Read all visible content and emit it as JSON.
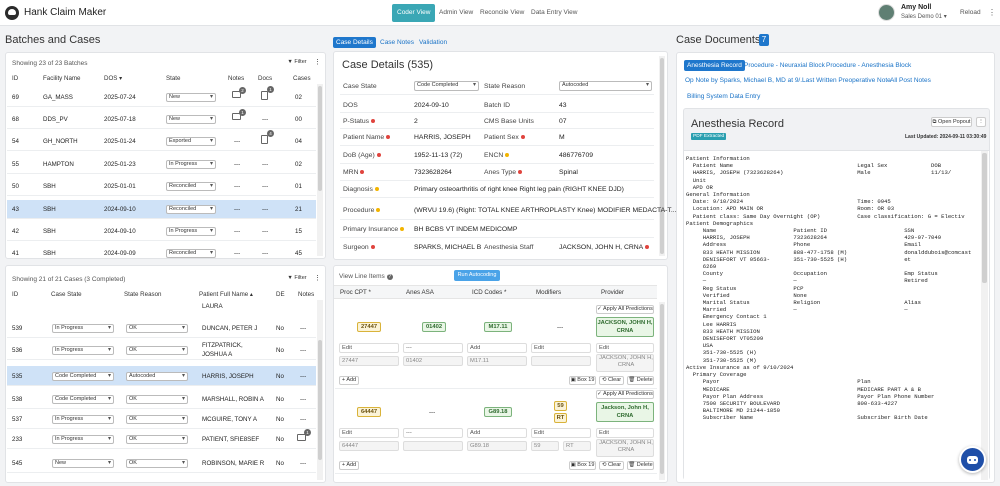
{
  "app": {
    "title": "Hank Claim Maker"
  },
  "nav": [
    {
      "label": "Coder View",
      "active": true
    },
    {
      "label": "Admin View",
      "active": false
    },
    {
      "label": "Reconcile View",
      "active": false
    },
    {
      "label": "Data Entry View",
      "active": false
    }
  ],
  "user": {
    "name": "Amy Noll",
    "role": "Sales Demo 01",
    "reload": "Reload"
  },
  "batches": {
    "title": "Batches and Cases",
    "showing": "Showing 23 of 23 Batches",
    "filter": "Filter",
    "headers": [
      "ID",
      "Facility Name",
      "DOS",
      "State",
      "Notes",
      "Docs",
      "Cases"
    ],
    "rows": [
      {
        "id": "69",
        "facility": "GA_MASS",
        "dos": "2025-07-24",
        "state": "New",
        "notes": "2",
        "docs": "1",
        "cases": "02"
      },
      {
        "id": "68",
        "facility": "DDS_PV",
        "dos": "2025-07-18",
        "state": "New",
        "notes": "1",
        "docs": "---",
        "cases": "00"
      },
      {
        "id": "54",
        "facility": "GH_NORTH",
        "dos": "2025-01-24",
        "state": "Exported",
        "notes": "---",
        "docs": "4",
        "cases": "04"
      },
      {
        "id": "55",
        "facility": "HAMPTON",
        "dos": "2025-01-23",
        "state": "In Progress",
        "notes": "---",
        "docs": "---",
        "cases": "02"
      },
      {
        "id": "50",
        "facility": "SBH",
        "dos": "2025-01-01",
        "state": "Reconciled",
        "notes": "---",
        "docs": "---",
        "cases": "01"
      },
      {
        "id": "43",
        "facility": "SBH",
        "dos": "2024-09-10",
        "state": "Reconciled",
        "notes": "---",
        "docs": "---",
        "cases": "21"
      },
      {
        "id": "42",
        "facility": "SBH",
        "dos": "2024-09-10",
        "state": "In Progress",
        "notes": "---",
        "docs": "---",
        "cases": "15"
      },
      {
        "id": "41",
        "facility": "SBH",
        "dos": "2024-09-09",
        "state": "Reconciled",
        "notes": "---",
        "docs": "---",
        "cases": "45"
      }
    ]
  },
  "cases": {
    "showing": "Showing 21 of 21 Cases (3 Completed)",
    "filter": "Filter",
    "headers": [
      "ID",
      "Case State",
      "State Reason",
      "Patient Full Name",
      "DE",
      "Notes"
    ],
    "top_name": "LAURA",
    "rows": [
      {
        "id": "539",
        "state": "In Progress",
        "reason": "OK",
        "name": "DUNCAN, PETER J",
        "name2": "",
        "de": "No",
        "notes": "---"
      },
      {
        "id": "536",
        "state": "In Progress",
        "reason": "OK",
        "name": "FITZPATRICK,",
        "name2": "JOSHUA A",
        "de": "No",
        "notes": "---"
      },
      {
        "id": "535",
        "state": "Code Completed",
        "reason": "Autocoded",
        "name": "HARRIS, JOSEPH",
        "name2": "",
        "de": "No",
        "notes": "---"
      },
      {
        "id": "538",
        "state": "Code Completed",
        "reason": "OK",
        "name": "MARSHALL, ROBIN A",
        "name2": "",
        "de": "No",
        "notes": "---"
      },
      {
        "id": "537",
        "state": "In Progress",
        "reason": "OK",
        "name": "MCGUIRE, TONY A",
        "name2": "",
        "de": "No",
        "notes": "---"
      },
      {
        "id": "233",
        "state": "In Progress",
        "reason": "OK",
        "name": "PATIENT, SFIE8SEF",
        "name2": "",
        "de": "No",
        "notes": "1"
      },
      {
        "id": "545",
        "state": "New",
        "reason": "OK",
        "name": "ROBINSON, MARIE R",
        "name2": "",
        "de": "No",
        "notes": "---"
      }
    ]
  },
  "case_tabs": [
    "Case Details",
    "Case Notes",
    "Validation"
  ],
  "case_details": {
    "title": "Case Details (535)",
    "fields": {
      "case_state_label": "Case State",
      "case_state": "Code Completed",
      "state_reason_label": "State Reason",
      "state_reason": "Autocoded",
      "dos_label": "DOS",
      "dos": "2024-09-10",
      "batch_label": "Batch ID",
      "batch": "43",
      "pstatus_label": "P-Status",
      "pstatus": "2",
      "cms_label": "CMS Base Units",
      "cms": "07",
      "patient_label": "Patient Name",
      "patient": "HARRIS, JOSEPH",
      "sex_label": "Patient Sex",
      "sex": "M",
      "dob_label": "DoB (Age)",
      "dob": "1952-11-13 (72)",
      "encn_label": "ENCN",
      "encn": "486776709",
      "mrn_label": "MRN",
      "mrn": "7323628264",
      "anes_type_label": "Anes Type",
      "anes_type": "Spinal",
      "diagnosis_label": "Diagnosis",
      "diagnosis": "Primary osteoarthritis of right knee Right leg pain (RIGHT KNEE DJD)",
      "procedure_label": "Procedure",
      "procedure": "(WRVU 19.6) (Right: TOTAL KNEE ARTHROPLASTY Knee) MODIFIER MEDACTA-T...",
      "insurance_label": "Primary Insurance",
      "insurance": "BH BCBS VT INDEM MEDICOMP",
      "surgeon_label": "Surgeon",
      "surgeon": "SPARKS, MICHAEL B",
      "anes_staff_label": "Anesthesia Staff",
      "anes_staff": "JACKSON, JOHN H, CRNA"
    }
  },
  "line_items": {
    "title": "View Line Items",
    "run_button": "Run Autocoding",
    "headers": [
      "Proc CPT",
      "Anes ASA",
      "ICD Codes",
      "Modifiers",
      "Provider"
    ],
    "apply": "Apply All Predictions",
    "edit": "Edit",
    "add": "Add",
    "box": "Box 19",
    "clear": "Clear",
    "delete": "Delete",
    "dash": "---",
    "items": [
      {
        "cpt": "27447",
        "asa": "01402",
        "icd": "M17.11",
        "mods": "---",
        "mods2": "",
        "provider": "JACKSON, JOHN H, CRNA",
        "row_cpt": "27447",
        "row_asa": "01402",
        "row_icd": "M17.11",
        "row_mod": "",
        "row_provider": "JACKSON, JOHN H, CRNA"
      },
      {
        "cpt": "64447",
        "asa": "---",
        "icd": "G89.18",
        "mods": "59",
        "mods2": "RT",
        "provider": "Jackson, John H, CRNA",
        "row_cpt": "64447",
        "row_asa": "",
        "row_icd": "G89.18",
        "row_mod": "59",
        "row_mod2": "RT",
        "row_provider": "JACKSON, JOHN H, CRNA"
      }
    ]
  },
  "documents": {
    "title": "Case Documents",
    "count": "7",
    "tabs": [
      "Anesthesia Record",
      "Procedure - Neuraxial Block",
      "Procedure - Anesthesia Block",
      "Op Note by Sparks, Michael B, MD at 9/...",
      "Last Written Preoperative Note",
      "All Post Notes",
      "Billing System Data Entry"
    ],
    "doc_title": "Anesthesia Record",
    "pdf_badge": "PDF Extracted",
    "open_popout": "Open Popout",
    "last_updated": "Last Updated: 2024-09-11 03:30:49",
    "text": "Patient Information\n  Patient Name                                     Legal Sex             DOB\n  HARRIS, JOSEPH (7323628264)                      Male                  11/13/\n  Unit\n  APD OR\nGeneral Information\n  Date: 9/10/2024                                  Time: 0945\n  Location: APD MAIN OR                            Room: OR 03\n  Patient class: Same Day Overnight (OP)           Case classification: G = Electiv\nPatient Demographics\n     Name                       Patient ID                       SSN\n     HARRIS, JOSEPH             7323628264                       429-07-7049\n     Address                    Phone                            Email\n     833 HEATH MISSION          888-477-1758 (M)                 donalddubois@comcast\n     DENISEFORT VT 05663-       351-730-5525 (H)                 et\n     6269\n     County                     Occupation                       Emp Status\n     —                          —                                Retired\n     Reg Status                 PCP\n     Verified                   None\n     Marital Status             Religion                         Alias\n     Married                    —                                —\n     Emergency Contact 1\n     Lee HARRIS\n     833 HEATH MISSION\n     DENISEFORT VT05209\n     USA\n     351-730-5525 (H)\n     351-730-5525 (M)\nActive Insurance as of 9/10/2024\n  Primary Coverage\n     Payor                                         Plan\n     MEDICARE                                      MEDICARE PART A & B\n     Payor Plan Address                            Payor Plan Phone Number\n     7500 SECURITY BOULEVARD                       800-633-4227\n     BALTIMORE MD 21244-1850\n     Subscriber Name                               Subscriber Birth Date"
  },
  "colors": {
    "accent": "#1f77cc",
    "teal": "#3aa7b5",
    "selected_row": "#cfe2f7"
  }
}
